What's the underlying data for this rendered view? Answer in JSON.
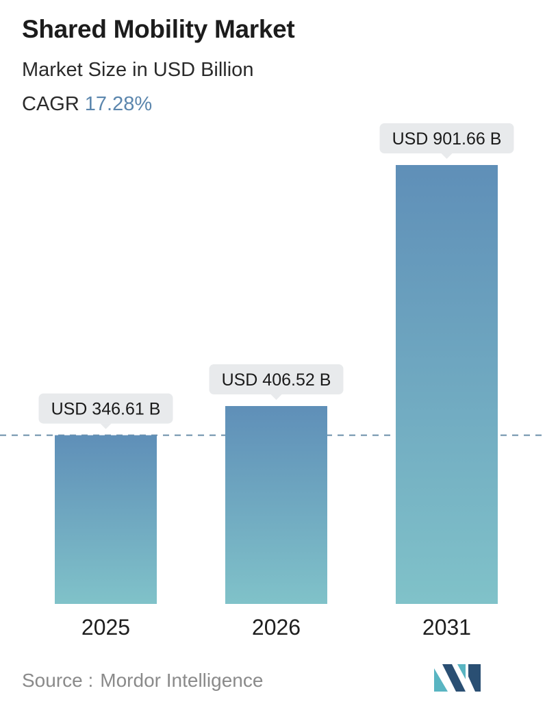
{
  "header": {
    "title": "Shared Mobility Market",
    "subtitle": "Market Size in USD Billion",
    "cagr_label": "CAGR",
    "cagr_value": "17.28%"
  },
  "chart_data": {
    "type": "bar",
    "title": "Shared Mobility Market",
    "subtitle": "Market Size in USD Billion",
    "categories": [
      "2025",
      "2026",
      "2031"
    ],
    "values": [
      346.61,
      406.52,
      901.66
    ],
    "data_labels": [
      "USD 346.61 B",
      "USD 406.52 B",
      "USD 901.66 B"
    ],
    "ylim": [
      0,
      901.66
    ],
    "grid": false,
    "reference_line": {
      "value": 346.61,
      "style": "dashed"
    },
    "colors": {
      "bar_top": "#5f8fb8",
      "bar_bottom": "#80c2c9",
      "label_bg": "#e8eaec",
      "reference_line": "#6a8fa9"
    }
  },
  "footer": {
    "source_label": "Source :",
    "source_name": "Mordor Intelligence",
    "logo_icon": "mordor-intelligence-logo-icon",
    "logo_colors": [
      "#2a4f73",
      "#59b5c2"
    ]
  }
}
